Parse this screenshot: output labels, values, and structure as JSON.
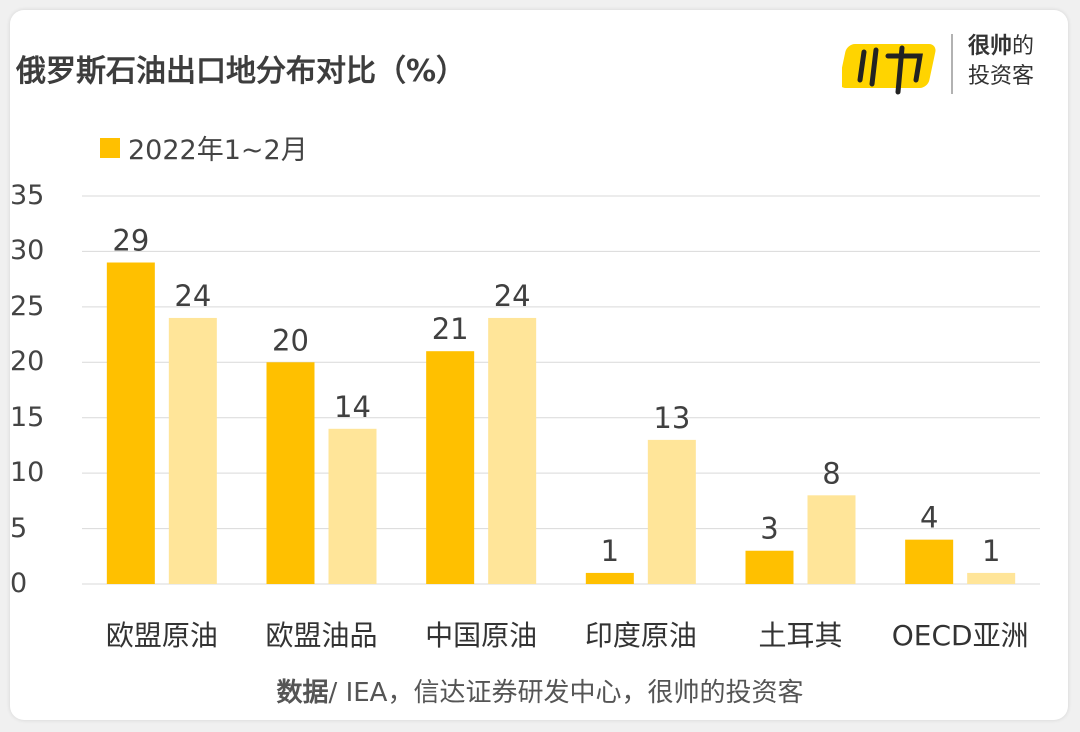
{
  "title": "俄罗斯石油出口地分布对比（%）",
  "logo": {
    "brand_bold": "很帅",
    "brand_rest": "的",
    "brand_line2": "投资客",
    "mark": "帅"
  },
  "source": {
    "label": "数据",
    "text": "/ IEA，信达证券研发中心，很帅的投资客"
  },
  "colors": {
    "series1": "#FFC000",
    "series2": "#FFE599",
    "grid": "#d9d9d9"
  },
  "chart_data": {
    "type": "bar",
    "title": "俄罗斯石油出口地分布对比（%）",
    "xlabel": "",
    "ylabel": "",
    "ylim": [
      0,
      35
    ],
    "yticks": [
      "0",
      "5",
      "10",
      "15",
      "20",
      "25",
      "30",
      "35"
    ],
    "grid": true,
    "legend_position": "top-left",
    "categories": [
      "欧盟原油",
      "欧盟油品",
      "中国原油",
      "印度原油",
      "土耳其",
      "OECD亚洲"
    ],
    "series": [
      {
        "name": "2022年1~2月",
        "values": [
          29,
          20,
          21,
          1,
          3,
          4
        ]
      },
      {
        "values": [
          24,
          14,
          24,
          13,
          8,
          1
        ]
      }
    ]
  }
}
